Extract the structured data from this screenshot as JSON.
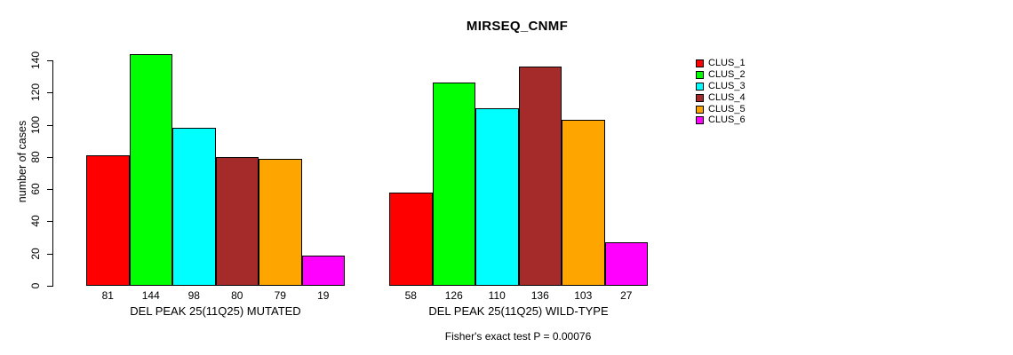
{
  "chart_data": {
    "type": "bar",
    "title": "MIRSEQ_CNMF",
    "ylabel": "number of cases",
    "xlabel": "",
    "ylim": [
      0,
      140
    ],
    "yticks": [
      0,
      20,
      40,
      60,
      80,
      100,
      120,
      140
    ],
    "grid": false,
    "bar_value_labels_shown": true,
    "annotation": "Fisher's exact test P = 0.00076",
    "groups": [
      {
        "label": "DEL PEAK 25(11Q25) MUTATED",
        "values": [
          81,
          144,
          98,
          80,
          79,
          19
        ]
      },
      {
        "label": "DEL PEAK 25(11Q25) WILD-TYPE",
        "values": [
          58,
          126,
          110,
          136,
          103,
          27
        ]
      }
    ],
    "series_colors": [
      "#FF0000",
      "#00FF00",
      "#00FFFF",
      "#A52A2A",
      "#FFA500",
      "#FF00FF"
    ],
    "legend": {
      "position": "right",
      "entries": [
        {
          "label": "CLUS_1",
          "color": "#FF0000"
        },
        {
          "label": "CLUS_2",
          "color": "#00FF00"
        },
        {
          "label": "CLUS_3",
          "color": "#00FFFF"
        },
        {
          "label": "CLUS_4",
          "color": "#A52A2A"
        },
        {
          "label": "CLUS_5",
          "color": "#FFA500"
        },
        {
          "label": "CLUS_6",
          "color": "#FF00FF"
        }
      ]
    }
  }
}
